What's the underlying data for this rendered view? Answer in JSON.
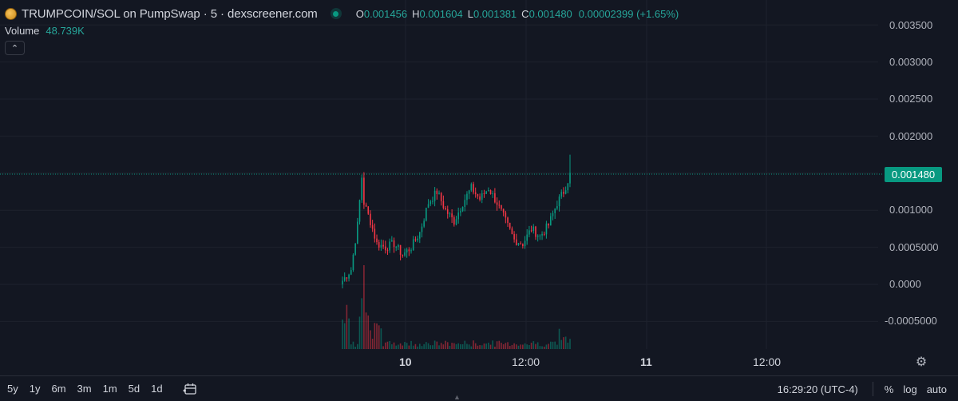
{
  "header": {
    "title": "TRUMPCOIN/SOL on PumpSwap · 5 · dexscreener.com",
    "ohlc": [
      {
        "key": "O",
        "value": "0.001456"
      },
      {
        "key": "H",
        "value": "0.001604"
      },
      {
        "key": "L",
        "value": "0.001381"
      },
      {
        "key": "C",
        "value": "0.001480"
      }
    ],
    "change": "0.00002399 (+1.65%)"
  },
  "volume": {
    "label": "Volume",
    "value": "48.739K"
  },
  "collapse_icon": "chevron-up-icon",
  "price_axis": {
    "ticks": [
      "0.003500",
      "0.003000",
      "0.002500",
      "0.002000",
      "0.001000",
      "0.0005000",
      "0.0000",
      "-0.0005000"
    ],
    "current_price": "0.001480"
  },
  "time_axis": {
    "ticks": [
      {
        "label": "10",
        "bold": true
      },
      {
        "label": "12:00",
        "bold": false
      },
      {
        "label": "11",
        "bold": true
      },
      {
        "label": "12:00",
        "bold": false
      }
    ]
  },
  "bottom_bar": {
    "ranges": [
      "5y",
      "1y",
      "6m",
      "3m",
      "1m",
      "5d",
      "1d"
    ],
    "clock": "16:29:20 (UTC-4)",
    "percent": "%",
    "log": "log",
    "auto": "auto"
  },
  "colors": {
    "background": "#131722",
    "up": "#089981",
    "down": "#f23645",
    "grid": "#1e222d"
  },
  "chart_data": {
    "type": "candlestick",
    "price_scale": [
      -0.0005,
      0.0035
    ],
    "current_price": 0.00148,
    "anchors": [
      [
        0,
        5e-05
      ],
      [
        4,
        0.0002
      ],
      [
        7,
        0.0008
      ],
      [
        9,
        0.00145
      ],
      [
        10,
        0.0011
      ],
      [
        13,
        0.00085
      ],
      [
        16,
        0.00055
      ],
      [
        20,
        0.0005
      ],
      [
        24,
        0.00055
      ],
      [
        28,
        0.0004
      ],
      [
        32,
        0.0005
      ],
      [
        36,
        0.0007
      ],
      [
        40,
        0.0011
      ],
      [
        44,
        0.00125
      ],
      [
        48,
        0.001
      ],
      [
        52,
        0.00085
      ],
      [
        56,
        0.0011
      ],
      [
        60,
        0.0013
      ],
      [
        64,
        0.00115
      ],
      [
        68,
        0.0013
      ],
      [
        72,
        0.0011
      ],
      [
        76,
        0.00085
      ],
      [
        80,
        0.0006
      ],
      [
        84,
        0.00055
      ],
      [
        88,
        0.00075
      ],
      [
        92,
        0.00065
      ],
      [
        96,
        0.0008
      ],
      [
        100,
        0.0011
      ],
      [
        103,
        0.00125
      ],
      [
        106,
        0.00148
      ]
    ],
    "spike_high": 0.00175
  }
}
